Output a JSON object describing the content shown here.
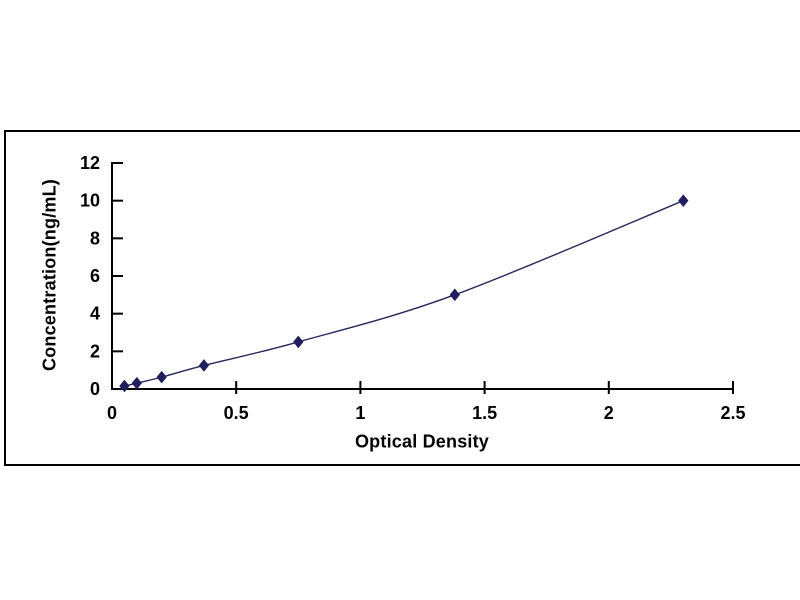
{
  "figure": {
    "background": "#ffffff",
    "frame_border_color": "#000000"
  },
  "chart_data": {
    "type": "line",
    "title": "",
    "xlabel": "Optical Density",
    "ylabel": "Concentration(ng/mL)",
    "x": [
      0.05,
      0.1,
      0.2,
      0.37,
      0.75,
      1.38,
      2.3
    ],
    "y": [
      0.16,
      0.31,
      0.63,
      1.25,
      2.5,
      5,
      10
    ],
    "xlim": [
      0,
      2.5
    ],
    "ylim": [
      0,
      12
    ],
    "x_ticks": [
      0,
      0.5,
      1,
      1.5,
      2,
      2.5
    ],
    "x_tick_labels": [
      "0",
      "0.5",
      "1",
      "1.5",
      "2",
      "2.5"
    ],
    "y_ticks": [
      0,
      2,
      4,
      6,
      8,
      10,
      12
    ],
    "y_tick_labels": [
      "0",
      "2",
      "4",
      "6",
      "8",
      "10",
      "12"
    ],
    "grid": false,
    "legend": "none",
    "marker": "diamond",
    "marker_color": "#1f1f5e",
    "line_color": "#26265c",
    "axis_color": "#000000",
    "tick_label_color": "#000000",
    "smooth_line": true
  }
}
